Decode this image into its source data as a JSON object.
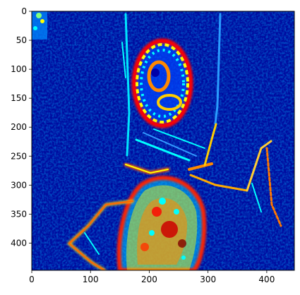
{
  "image": {
    "description_tags": [
      "heatmap-style image",
      "jet colormap",
      "edge-detection pattern"
    ],
    "colormap": "jet",
    "colors": {
      "background_deep": "#00007f",
      "mid": "#00ffff",
      "hot": "#ff0000",
      "peak": "#800000"
    }
  },
  "axes": {
    "x_ticks": [
      "0",
      "100",
      "200",
      "300",
      "400"
    ],
    "y_ticks": [
      "0",
      "50",
      "100",
      "150",
      "200",
      "250",
      "300",
      "350",
      "400"
    ],
    "x_range": [
      0,
      447
    ],
    "y_range": [
      0,
      447
    ]
  }
}
